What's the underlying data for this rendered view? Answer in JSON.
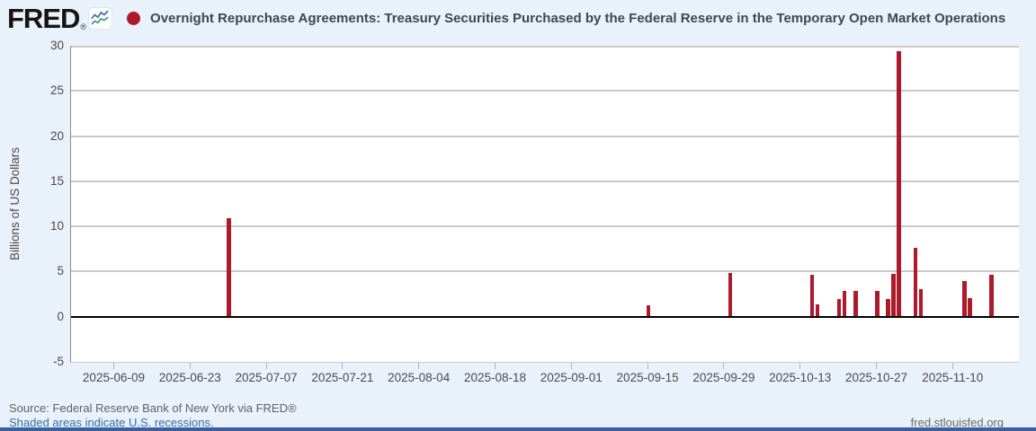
{
  "header": {
    "logo": "FRED",
    "logo_reg": "®",
    "title": "Overnight Repurchase Agreements: Treasury Securities Purchased by the Federal Reserve in the Temporary Open Market Operations"
  },
  "chart_data": {
    "type": "bar",
    "title": "Overnight Repurchase Agreements: Treasury Securities Purchased by the Federal Reserve in the Temporary Open Market Operations",
    "ylabel": "Billions of US Dollars",
    "xlabel": "",
    "ylim": [
      -5,
      30
    ],
    "y_ticks": [
      30,
      25,
      20,
      15,
      10,
      5,
      0,
      -5
    ],
    "grid_values": [
      30,
      25,
      20,
      15,
      10,
      5
    ],
    "grid": true,
    "legend_position": "none",
    "bar_color": "#ad1a2c",
    "axis_range": [
      "2025-06-01",
      "2025-11-22"
    ],
    "x_ticks": [
      "2025-06-09",
      "2025-06-23",
      "2025-07-07",
      "2025-07-21",
      "2025-08-04",
      "2025-08-18",
      "2025-09-01",
      "2025-09-15",
      "2025-09-29",
      "2025-10-13",
      "2025-10-27",
      "2025-11-10"
    ],
    "points": [
      {
        "date": "2025-06-30",
        "value": 10.9
      },
      {
        "date": "2025-09-15",
        "value": 1.3
      },
      {
        "date": "2025-09-30",
        "value": 4.85
      },
      {
        "date": "2025-10-15",
        "value": 4.6
      },
      {
        "date": "2025-10-16",
        "value": 1.4
      },
      {
        "date": "2025-10-20",
        "value": 2.0
      },
      {
        "date": "2025-10-21",
        "value": 2.9
      },
      {
        "date": "2025-10-23",
        "value": 2.9
      },
      {
        "date": "2025-10-27",
        "value": 2.85
      },
      {
        "date": "2025-10-29",
        "value": 2.0
      },
      {
        "date": "2025-10-30",
        "value": 4.75
      },
      {
        "date": "2025-10-31",
        "value": 29.4
      },
      {
        "date": "2025-11-03",
        "value": 7.6
      },
      {
        "date": "2025-11-04",
        "value": 3.1
      },
      {
        "date": "2025-11-12",
        "value": 4.0
      },
      {
        "date": "2025-11-13",
        "value": 2.1
      },
      {
        "date": "2025-11-17",
        "value": 4.6
      }
    ]
  },
  "footer": {
    "source": "Source: Federal Reserve Bank of New York via FRED®",
    "recessions_note": "Shaded areas indicate U.S. recessions.",
    "site": "fred.stlouisfed.org"
  }
}
